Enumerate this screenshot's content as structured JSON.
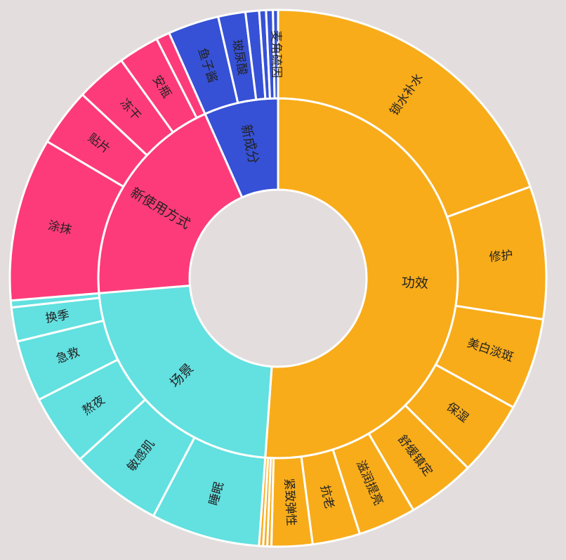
{
  "chart_data": {
    "type": "sunburst",
    "title": "",
    "colors": {
      "功效": "#f8ac1a",
      "新成分": "#3651d6",
      "新使用方式": "#fd3b7a",
      "场景": "#63e0e0",
      "background": "#e3dddd",
      "border": "#ffffff"
    },
    "categories": [
      {
        "name": "功效",
        "children": [
          {
            "name": "锁水补水",
            "value": 95,
            "label": "锁水补水"
          },
          {
            "name": "修护",
            "value": 39,
            "label": "修护"
          },
          {
            "name": "美白淡斑",
            "value": 27,
            "label": "美白淡斑"
          },
          {
            "name": "保湿",
            "value": 22,
            "label": "保湿"
          },
          {
            "name": "舒缓镇定",
            "value": 20,
            "label": "舒缓镇定"
          },
          {
            "name": "滋润提亮",
            "value": 17,
            "label": "滋润提亮"
          },
          {
            "name": "抗老",
            "value": 14,
            "label": "抗老"
          },
          {
            "name": "紧致弹性",
            "value": 12,
            "label": "紧致弹性"
          },
          {
            "name": "功效-小1",
            "value": 1.2,
            "label": ""
          },
          {
            "name": "功效-小2",
            "value": 1.2,
            "label": ""
          },
          {
            "name": "功效-小3",
            "value": 1.2,
            "label": ""
          }
        ]
      },
      {
        "name": "场景",
        "children": [
          {
            "name": "睡眠",
            "value": 32,
            "label": "睡眠"
          },
          {
            "name": "敏感肌",
            "value": 27,
            "label": "敏感肌"
          },
          {
            "name": "熬夜",
            "value": 21,
            "label": "熬夜"
          },
          {
            "name": "急救",
            "value": 18,
            "label": "急救"
          },
          {
            "name": "换季",
            "value": 10,
            "label": "换季"
          },
          {
            "name": "场景-小1",
            "value": 2,
            "label": ""
          }
        ]
      },
      {
        "name": "新使用方式",
        "children": [
          {
            "name": "涂抹",
            "value": 48,
            "label": "涂抹"
          },
          {
            "name": "贴片",
            "value": 17,
            "label": "贴片"
          },
          {
            "name": "冻干",
            "value": 15,
            "label": "冻干"
          },
          {
            "name": "安瓶",
            "value": 12,
            "label": "安瓶"
          },
          {
            "name": "新使用方式-小1",
            "value": 4,
            "label": ""
          }
        ]
      },
      {
        "name": "新成分",
        "children": [
          {
            "name": "鱼子酱",
            "value": 15,
            "label": "鱼子酱"
          },
          {
            "name": "玻尿酸",
            "value": 8,
            "label": "玻尿酸"
          },
          {
            "name": "新成分-小1",
            "value": 4,
            "label": ""
          },
          {
            "name": "新成分-小2",
            "value": 2,
            "label": ""
          },
          {
            "name": "新成分-小3",
            "value": 2,
            "label": ""
          },
          {
            "name": "麦角硫因",
            "value": 1.5,
            "label": "麦角硫因"
          }
        ]
      }
    ]
  }
}
